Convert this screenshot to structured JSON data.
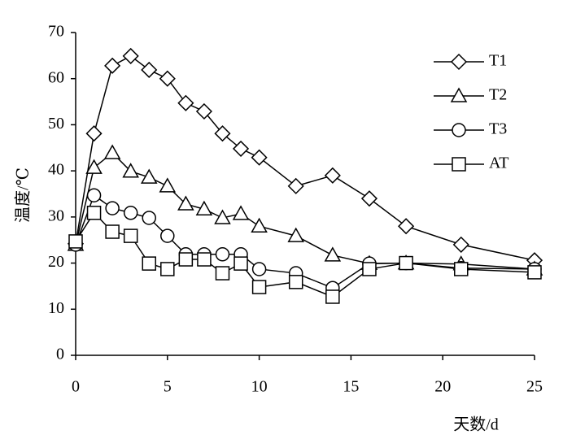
{
  "chart_data": {
    "type": "line",
    "x_label": "天数/d",
    "y_label": "温度/℃",
    "x": [
      0,
      1,
      2,
      3,
      4,
      5,
      6,
      7,
      8,
      9,
      10,
      12,
      14,
      16,
      18,
      21,
      25
    ],
    "series": [
      {
        "name": "T1",
        "color": "#000000",
        "marker": "diamond",
        "values": [
          24.2,
          48.1,
          62.8,
          64.9,
          61.9,
          60,
          54.7,
          52.9,
          48.1,
          44.8,
          42.9,
          36.7,
          39,
          34,
          28,
          24,
          20.6
        ]
      },
      {
        "name": "T2",
        "color": "#000000",
        "marker": "triangle",
        "values": [
          24,
          40.7,
          43.9,
          39.9,
          38.6,
          36.7,
          32.8,
          31.7,
          29.8,
          30.7,
          28,
          25.9,
          21.7,
          19.9,
          20,
          19.8,
          18.7
        ]
      },
      {
        "name": "T3",
        "color": "#000000",
        "marker": "circle",
        "values": [
          24,
          34.7,
          31.9,
          30.9,
          29.8,
          25.9,
          21.9,
          21.9,
          21.9,
          21.9,
          18.7,
          17.8,
          14.6,
          19.9,
          20,
          18.9,
          18.7
        ]
      },
      {
        "name": "AT",
        "color": "#000000",
        "marker": "square",
        "values": [
          24.7,
          30.9,
          26.8,
          25.9,
          19.9,
          18.7,
          20.8,
          20.8,
          17.8,
          19.9,
          14.8,
          15.9,
          12.7,
          18.7,
          20,
          18.7,
          18
        ]
      }
    ],
    "xlim": [
      0,
      25
    ],
    "xticks": [
      0,
      5,
      10,
      15,
      20,
      25
    ],
    "ylim": [
      0,
      70
    ],
    "yticks": [
      0,
      10,
      20,
      30,
      40,
      50,
      60,
      70
    ],
    "legend": "upper right"
  }
}
